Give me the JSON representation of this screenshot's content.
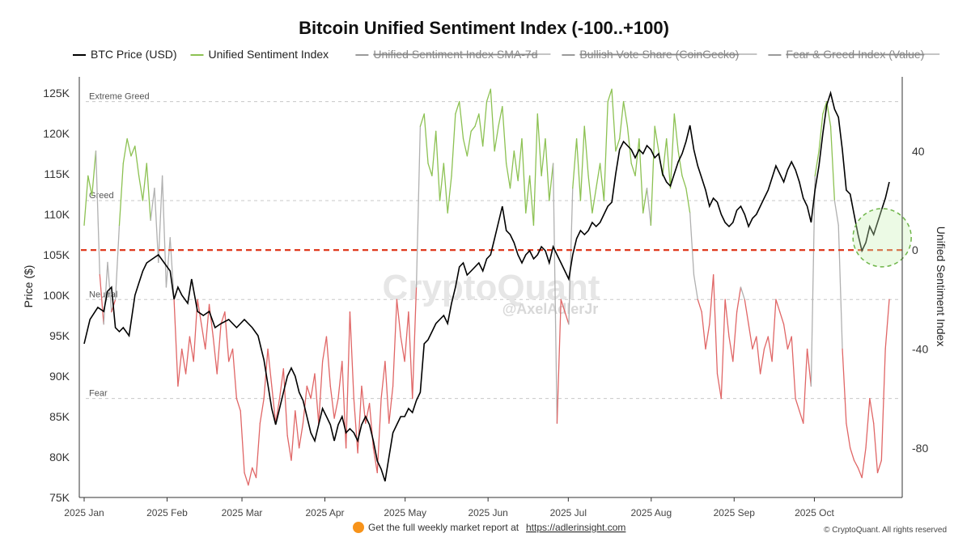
{
  "chart_data": {
    "type": "line",
    "title": "Bitcoin Unified Sentiment Index (-100..+100)",
    "legend": [
      {
        "name": "BTC Price (USD)",
        "color": "#000000",
        "active": true
      },
      {
        "name": "Unified Sentiment Index",
        "color": "#8cc152",
        "active": true
      },
      {
        "name": "Unified Sentiment Index SMA-7d",
        "color": "#9a9a9a",
        "active": false
      },
      {
        "name": "Bullish Vote Share (CoinGecko)",
        "color": "#9a9a9a",
        "active": false
      },
      {
        "name": "Fear & Greed Index (Value)",
        "color": "#9a9a9a",
        "active": false
      }
    ],
    "left_axis": {
      "label": "Price ($)",
      "min": 75000,
      "max": 127000,
      "ticks": [
        75000,
        80000,
        85000,
        90000,
        95000,
        100000,
        105000,
        110000,
        115000,
        120000,
        125000
      ],
      "tick_labels": [
        "75K",
        "80K",
        "85K",
        "90K",
        "95K",
        "100K",
        "105K",
        "110K",
        "115K",
        "120K",
        "125K"
      ]
    },
    "right_axis": {
      "label": "Unified Sentiment Index",
      "min": -100,
      "max": 70,
      "ticks": [
        40,
        0,
        -40,
        -80
      ],
      "tick_labels": [
        "40",
        "0",
        "-40",
        "-80"
      ]
    },
    "x_axis": {
      "labels": [
        "2025 Jan",
        "2025 Feb",
        "2025 Mar",
        "2025 Apr",
        "2025 May",
        "2025 Jun",
        "2025 Jul",
        "2025 Aug",
        "2025 Sep",
        "2025 Oct"
      ],
      "days": 301
    },
    "bands": [
      {
        "label": "Extreme Greed",
        "value": 60
      },
      {
        "label": "Greed",
        "value": 20
      },
      {
        "label": "Neutral",
        "value": -20
      },
      {
        "label": "Fear",
        "value": -60
      }
    ],
    "zero_line": {
      "value": 0,
      "color": "#e03a1e"
    },
    "colors": {
      "greed_line": "#8cc152",
      "fear_line": "#e06666",
      "neutral_line": "#b0b0b0",
      "price": "#000000"
    },
    "btc_price_points": [
      [
        0,
        94000
      ],
      [
        3,
        97000
      ],
      [
        7,
        98500
      ],
      [
        10,
        98000
      ],
      [
        12,
        100500
      ],
      [
        14,
        101000
      ],
      [
        16,
        96000
      ],
      [
        18,
        95500
      ],
      [
        20,
        96000
      ],
      [
        23,
        95000
      ],
      [
        26,
        100000
      ],
      [
        28,
        101500
      ],
      [
        30,
        103000
      ],
      [
        32,
        104000
      ],
      [
        35,
        104500
      ],
      [
        38,
        105000
      ],
      [
        41,
        104000
      ],
      [
        44,
        103000
      ],
      [
        46,
        99500
      ],
      [
        48,
        101000
      ],
      [
        50,
        100000
      ],
      [
        53,
        99000
      ],
      [
        55,
        102000
      ],
      [
        58,
        98000
      ],
      [
        61,
        97500
      ],
      [
        64,
        98000
      ],
      [
        67,
        96000
      ],
      [
        70,
        96500
      ],
      [
        74,
        97000
      ],
      [
        78,
        96000
      ],
      [
        82,
        97000
      ],
      [
        86,
        96000
      ],
      [
        89,
        95000
      ],
      [
        92,
        92000
      ],
      [
        94,
        89000
      ],
      [
        96,
        86000
      ],
      [
        98,
        84000
      ],
      [
        100,
        86000
      ],
      [
        102,
        88000
      ],
      [
        104,
        90000
      ],
      [
        106,
        91000
      ],
      [
        108,
        90000
      ],
      [
        110,
        88000
      ],
      [
        112,
        87000
      ],
      [
        114,
        85000
      ],
      [
        116,
        83000
      ],
      [
        118,
        82000
      ],
      [
        120,
        84000
      ],
      [
        122,
        86000
      ],
      [
        124,
        85000
      ],
      [
        126,
        84000
      ],
      [
        128,
        82000
      ],
      [
        130,
        84000
      ],
      [
        132,
        85000
      ],
      [
        134,
        83000
      ],
      [
        136,
        83500
      ],
      [
        138,
        83000
      ],
      [
        140,
        82000
      ],
      [
        142,
        84000
      ],
      [
        144,
        85000
      ],
      [
        146,
        84000
      ],
      [
        148,
        82000
      ],
      [
        150,
        79500
      ],
      [
        152,
        78500
      ],
      [
        154,
        77000
      ],
      [
        156,
        80000
      ],
      [
        158,
        83000
      ],
      [
        160,
        84000
      ],
      [
        162,
        85000
      ],
      [
        164,
        85000
      ],
      [
        166,
        86000
      ],
      [
        168,
        85500
      ],
      [
        170,
        87000
      ],
      [
        172,
        88000
      ],
      [
        174,
        94000
      ],
      [
        176,
        94500
      ],
      [
        178,
        95500
      ],
      [
        180,
        96500
      ],
      [
        182,
        97000
      ],
      [
        184,
        97500
      ],
      [
        186,
        96500
      ],
      [
        188,
        99000
      ],
      [
        190,
        101000
      ],
      [
        192,
        103500
      ],
      [
        194,
        104000
      ],
      [
        196,
        102500
      ],
      [
        198,
        103000
      ],
      [
        200,
        103500
      ],
      [
        202,
        104000
      ],
      [
        204,
        103000
      ],
      [
        206,
        104500
      ],
      [
        208,
        105000
      ],
      [
        210,
        107000
      ],
      [
        212,
        109000
      ],
      [
        214,
        111000
      ],
      [
        216,
        108000
      ],
      [
        218,
        107500
      ],
      [
        220,
        106500
      ],
      [
        222,
        105000
      ],
      [
        224,
        104000
      ],
      [
        226,
        105000
      ],
      [
        228,
        105500
      ],
      [
        230,
        104500
      ],
      [
        232,
        105000
      ],
      [
        234,
        106000
      ],
      [
        236,
        105500
      ],
      [
        238,
        104000
      ],
      [
        240,
        106000
      ],
      [
        242,
        105000
      ],
      [
        244,
        104000
      ],
      [
        246,
        103000
      ],
      [
        248,
        102000
      ],
      [
        250,
        105000
      ],
      [
        252,
        107000
      ],
      [
        254,
        108000
      ],
      [
        256,
        107500
      ],
      [
        258,
        108000
      ],
      [
        260,
        109000
      ],
      [
        262,
        108500
      ],
      [
        264,
        109000
      ],
      [
        266,
        110000
      ],
      [
        268,
        111000
      ],
      [
        270,
        111500
      ],
      [
        272,
        115000
      ],
      [
        274,
        118000
      ],
      [
        276,
        119000
      ],
      [
        278,
        118500
      ],
      [
        280,
        118000
      ],
      [
        282,
        117000
      ],
      [
        284,
        118000
      ],
      [
        286,
        117500
      ],
      [
        288,
        118500
      ],
      [
        290,
        118000
      ],
      [
        292,
        117000
      ],
      [
        294,
        117500
      ],
      [
        296,
        115000
      ],
      [
        298,
        114000
      ],
      [
        300,
        113500
      ],
      [
        302,
        115000
      ],
      [
        304,
        116500
      ],
      [
        306,
        117500
      ],
      [
        308,
        119000
      ],
      [
        310,
        121000
      ],
      [
        312,
        118000
      ],
      [
        314,
        116000
      ],
      [
        316,
        114500
      ],
      [
        318,
        113000
      ],
      [
        320,
        111000
      ],
      [
        322,
        112000
      ],
      [
        324,
        111500
      ],
      [
        326,
        110000
      ],
      [
        328,
        109000
      ],
      [
        330,
        108500
      ],
      [
        332,
        109000
      ],
      [
        334,
        110500
      ],
      [
        336,
        111000
      ],
      [
        338,
        110000
      ],
      [
        340,
        108500
      ],
      [
        342,
        109500
      ],
      [
        344,
        110000
      ],
      [
        346,
        111000
      ],
      [
        348,
        112000
      ],
      [
        350,
        113000
      ],
      [
        352,
        114500
      ],
      [
        354,
        116000
      ],
      [
        356,
        115000
      ],
      [
        358,
        114000
      ],
      [
        360,
        115500
      ],
      [
        362,
        116500
      ],
      [
        364,
        115500
      ],
      [
        366,
        114000
      ],
      [
        368,
        112000
      ],
      [
        370,
        111000
      ],
      [
        372,
        109000
      ],
      [
        374,
        113000
      ],
      [
        376,
        116000
      ],
      [
        378,
        120000
      ],
      [
        380,
        123500
      ],
      [
        382,
        125000
      ],
      [
        384,
        123000
      ],
      [
        386,
        122000
      ],
      [
        388,
        118000
      ],
      [
        390,
        113000
      ],
      [
        392,
        112500
      ],
      [
        394,
        110000
      ],
      [
        396,
        107500
      ],
      [
        398,
        105500
      ],
      [
        400,
        106500
      ],
      [
        402,
        108500
      ],
      [
        404,
        107500
      ],
      [
        406,
        109000
      ],
      [
        408,
        110500
      ],
      [
        410,
        112000
      ],
      [
        412,
        114000
      ]
    ],
    "sentiment_points": [
      [
        0,
        10
      ],
      [
        2,
        30
      ],
      [
        4,
        22
      ],
      [
        6,
        40
      ],
      [
        8,
        -10
      ],
      [
        10,
        -30
      ],
      [
        12,
        -5
      ],
      [
        14,
        -25
      ],
      [
        16,
        -20
      ],
      [
        18,
        10
      ],
      [
        20,
        35
      ],
      [
        22,
        45
      ],
      [
        24,
        38
      ],
      [
        26,
        42
      ],
      [
        28,
        30
      ],
      [
        30,
        20
      ],
      [
        32,
        35
      ],
      [
        34,
        12
      ],
      [
        36,
        25
      ],
      [
        38,
        -5
      ],
      [
        40,
        30
      ],
      [
        42,
        -15
      ],
      [
        44,
        5
      ],
      [
        46,
        -20
      ],
      [
        48,
        -55
      ],
      [
        50,
        -40
      ],
      [
        52,
        -50
      ],
      [
        54,
        -35
      ],
      [
        56,
        -45
      ],
      [
        58,
        -20
      ],
      [
        60,
        -30
      ],
      [
        62,
        -40
      ],
      [
        64,
        -22
      ],
      [
        66,
        -35
      ],
      [
        68,
        -50
      ],
      [
        70,
        -30
      ],
      [
        72,
        -25
      ],
      [
        74,
        -45
      ],
      [
        76,
        -40
      ],
      [
        78,
        -60
      ],
      [
        80,
        -65
      ],
      [
        82,
        -90
      ],
      [
        84,
        -95
      ],
      [
        86,
        -88
      ],
      [
        88,
        -92
      ],
      [
        90,
        -70
      ],
      [
        92,
        -60
      ],
      [
        94,
        -40
      ],
      [
        96,
        -55
      ],
      [
        98,
        -70
      ],
      [
        100,
        -60
      ],
      [
        102,
        -48
      ],
      [
        104,
        -75
      ],
      [
        106,
        -85
      ],
      [
        108,
        -65
      ],
      [
        110,
        -80
      ],
      [
        112,
        -70
      ],
      [
        114,
        -55
      ],
      [
        116,
        -60
      ],
      [
        118,
        -50
      ],
      [
        120,
        -70
      ],
      [
        122,
        -45
      ],
      [
        124,
        -35
      ],
      [
        126,
        -55
      ],
      [
        128,
        -68
      ],
      [
        130,
        -60
      ],
      [
        132,
        -45
      ],
      [
        134,
        -80
      ],
      [
        136,
        -25
      ],
      [
        138,
        -60
      ],
      [
        140,
        -82
      ],
      [
        142,
        -55
      ],
      [
        144,
        -70
      ],
      [
        146,
        -62
      ],
      [
        148,
        -80
      ],
      [
        150,
        -90
      ],
      [
        152,
        -60
      ],
      [
        154,
        -45
      ],
      [
        156,
        -70
      ],
      [
        158,
        -55
      ],
      [
        160,
        -20
      ],
      [
        162,
        -35
      ],
      [
        164,
        -45
      ],
      [
        166,
        -25
      ],
      [
        168,
        -60
      ],
      [
        170,
        -15
      ],
      [
        172,
        50
      ],
      [
        174,
        55
      ],
      [
        176,
        35
      ],
      [
        178,
        30
      ],
      [
        180,
        48
      ],
      [
        182,
        20
      ],
      [
        184,
        35
      ],
      [
        186,
        15
      ],
      [
        188,
        30
      ],
      [
        190,
        55
      ],
      [
        192,
        60
      ],
      [
        194,
        45
      ],
      [
        196,
        38
      ],
      [
        198,
        48
      ],
      [
        200,
        50
      ],
      [
        202,
        55
      ],
      [
        204,
        42
      ],
      [
        206,
        60
      ],
      [
        208,
        65
      ],
      [
        210,
        40
      ],
      [
        212,
        50
      ],
      [
        214,
        58
      ],
      [
        216,
        35
      ],
      [
        218,
        25
      ],
      [
        220,
        40
      ],
      [
        222,
        28
      ],
      [
        224,
        45
      ],
      [
        226,
        15
      ],
      [
        228,
        30
      ],
      [
        230,
        10
      ],
      [
        232,
        55
      ],
      [
        234,
        30
      ],
      [
        236,
        45
      ],
      [
        238,
        20
      ],
      [
        240,
        35
      ],
      [
        242,
        -70
      ],
      [
        244,
        -20
      ],
      [
        246,
        -25
      ],
      [
        248,
        -30
      ],
      [
        250,
        25
      ],
      [
        252,
        45
      ],
      [
        254,
        20
      ],
      [
        256,
        50
      ],
      [
        258,
        30
      ],
      [
        260,
        15
      ],
      [
        262,
        25
      ],
      [
        264,
        35
      ],
      [
        266,
        20
      ],
      [
        268,
        60
      ],
      [
        270,
        65
      ],
      [
        272,
        40
      ],
      [
        274,
        45
      ],
      [
        276,
        60
      ],
      [
        278,
        50
      ],
      [
        280,
        35
      ],
      [
        282,
        30
      ],
      [
        284,
        45
      ],
      [
        286,
        15
      ],
      [
        288,
        25
      ],
      [
        290,
        10
      ],
      [
        292,
        50
      ],
      [
        294,
        40
      ],
      [
        296,
        30
      ],
      [
        298,
        45
      ],
      [
        300,
        25
      ],
      [
        302,
        55
      ],
      [
        304,
        40
      ],
      [
        306,
        30
      ],
      [
        308,
        25
      ],
      [
        310,
        15
      ],
      [
        312,
        -10
      ],
      [
        314,
        -20
      ],
      [
        316,
        -25
      ],
      [
        318,
        -40
      ],
      [
        320,
        -30
      ],
      [
        322,
        -10
      ],
      [
        324,
        -50
      ],
      [
        326,
        -60
      ],
      [
        328,
        -20
      ],
      [
        330,
        -35
      ],
      [
        332,
        -45
      ],
      [
        334,
        -25
      ],
      [
        336,
        -15
      ],
      [
        338,
        -20
      ],
      [
        340,
        -30
      ],
      [
        342,
        -40
      ],
      [
        344,
        -35
      ],
      [
        346,
        -50
      ],
      [
        348,
        -40
      ],
      [
        350,
        -35
      ],
      [
        352,
        -45
      ],
      [
        354,
        -20
      ],
      [
        356,
        -25
      ],
      [
        358,
        -30
      ],
      [
        360,
        -40
      ],
      [
        362,
        -35
      ],
      [
        364,
        -60
      ],
      [
        366,
        -65
      ],
      [
        368,
        -70
      ],
      [
        370,
        -40
      ],
      [
        372,
        -55
      ],
      [
        374,
        30
      ],
      [
        376,
        40
      ],
      [
        378,
        55
      ],
      [
        380,
        60
      ],
      [
        382,
        50
      ],
      [
        384,
        20
      ],
      [
        386,
        10
      ],
      [
        388,
        -40
      ],
      [
        390,
        -70
      ],
      [
        392,
        -80
      ],
      [
        394,
        -85
      ],
      [
        396,
        -88
      ],
      [
        398,
        -92
      ],
      [
        400,
        -80
      ],
      [
        402,
        -60
      ],
      [
        404,
        -70
      ],
      [
        406,
        -90
      ],
      [
        408,
        -85
      ],
      [
        410,
        -40
      ],
      [
        412,
        -20
      ]
    ],
    "highlight_circle": {
      "day": 410,
      "value": 5
    },
    "watermark": "CryptoQuant",
    "watermark_handle": "@AxelAdlerJr"
  },
  "footer": {
    "text": "Get the full weekly market report at",
    "link": "https://adlerinsight.com",
    "copyright": "© CryptoQuant. All rights reserved"
  }
}
